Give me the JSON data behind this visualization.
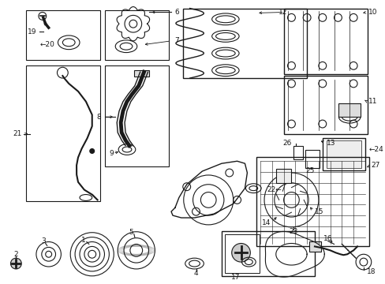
{
  "bg_color": "#ffffff",
  "line_color": "#1a1a1a",
  "fig_width": 4.89,
  "fig_height": 3.6,
  "dpi": 100,
  "label_fs": 6.5,
  "lw": 0.8
}
